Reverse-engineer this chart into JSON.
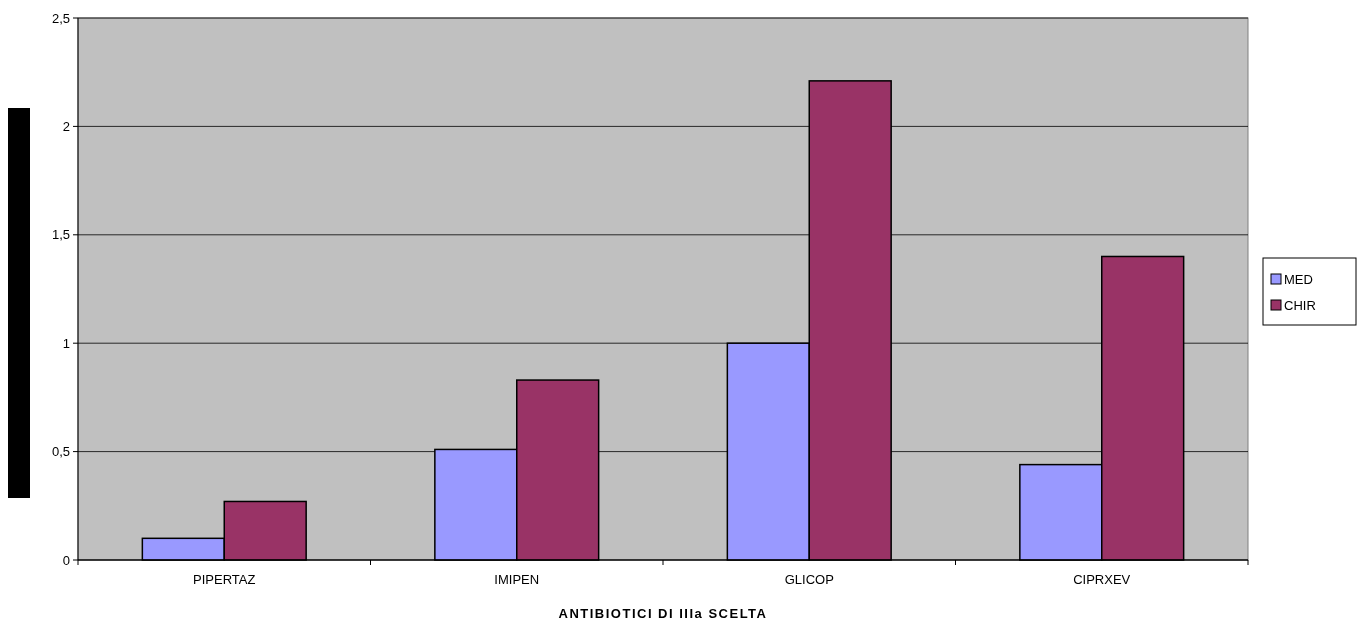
{
  "chart_data": {
    "type": "bar",
    "xlabel": "ANTIBIOTICI DI IIIa SCELTA",
    "categories": [
      "PIPERTAZ",
      "IMIPEN",
      "GLICOP",
      "CIPRXEV"
    ],
    "series": [
      {
        "name": "MED",
        "color": "#9999ff",
        "values": [
          0.1,
          0.51,
          1.0,
          0.44
        ]
      },
      {
        "name": "CHIR",
        "color": "#993366",
        "values": [
          0.27,
          0.83,
          2.21,
          1.4
        ]
      }
    ],
    "ylim": [
      0,
      2.5
    ],
    "yticks": [
      0,
      {
        "value": 0.5,
        "label": "0,5"
      },
      1,
      {
        "value": 1.5,
        "label": "1,5"
      },
      2,
      {
        "value": 2.5,
        "label": "2,5"
      }
    ],
    "grid": "y",
    "legend": "right"
  }
}
